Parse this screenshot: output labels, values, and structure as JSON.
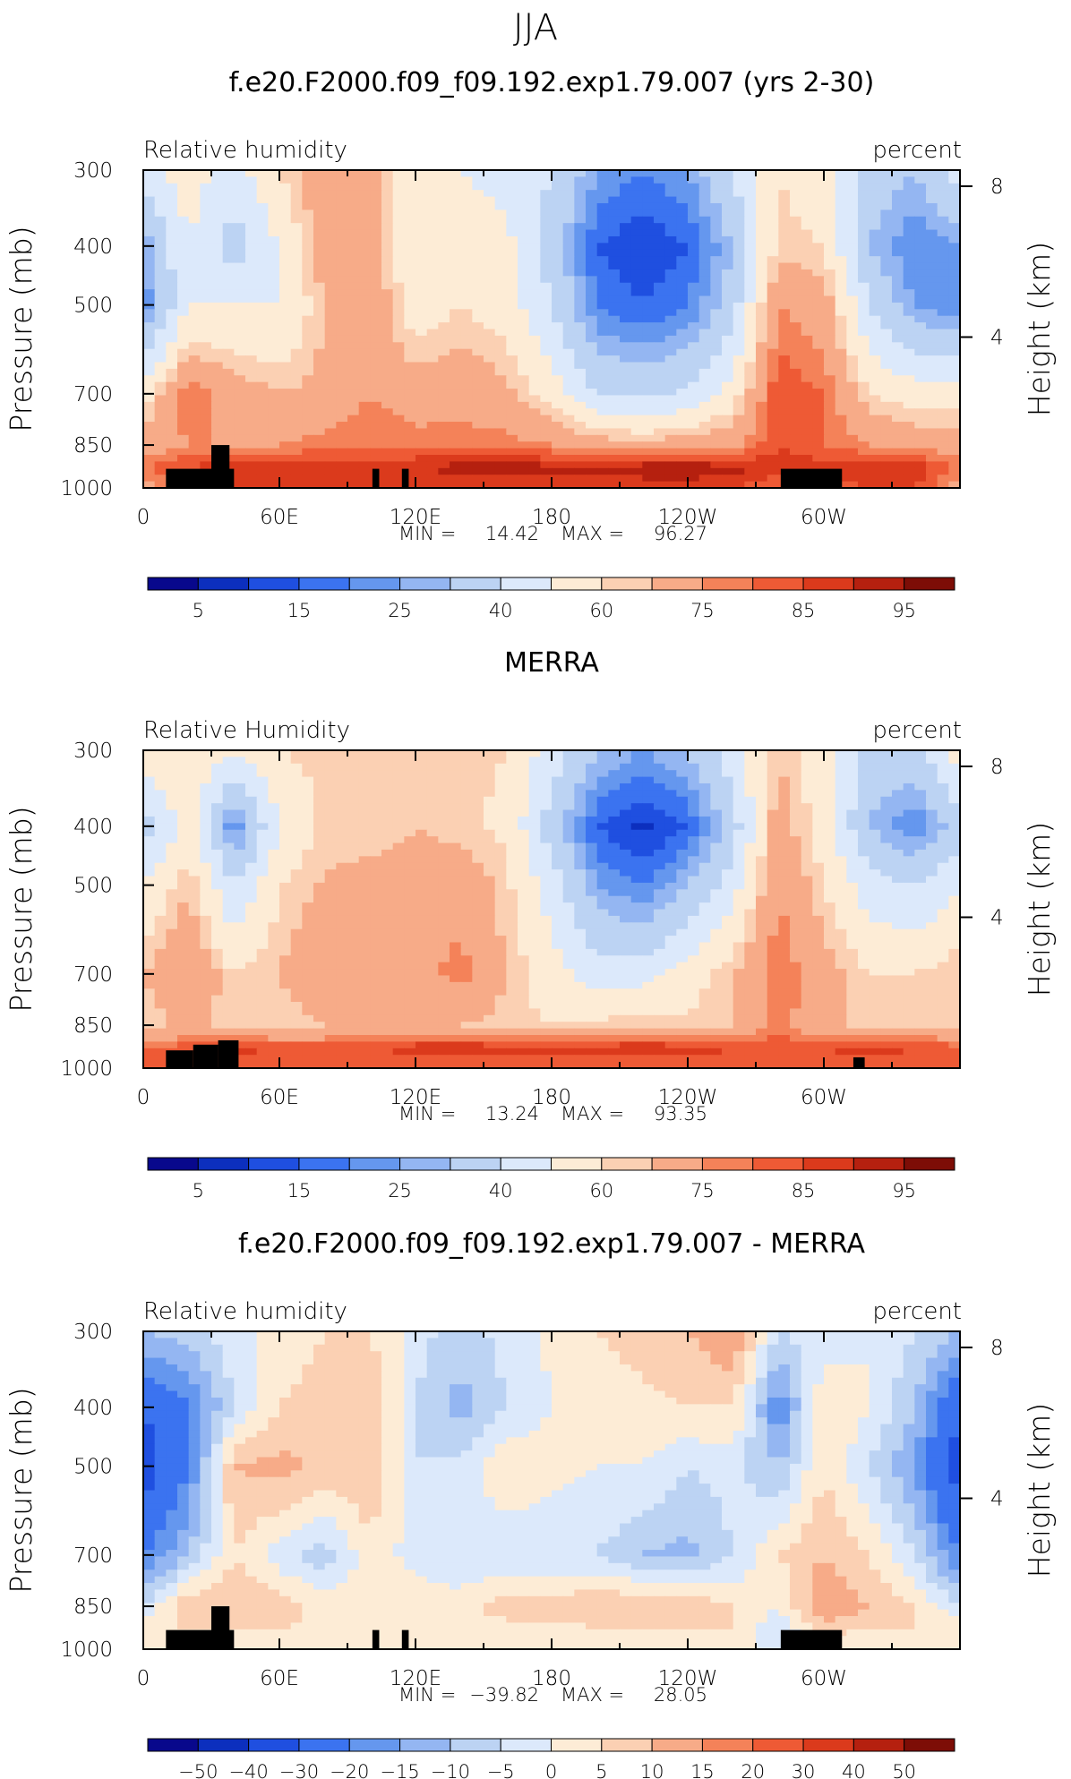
{
  "figure": {
    "season": "JJA"
  },
  "colors": {
    "abs_palette": [
      "#08088c",
      "#0c2fbe",
      "#1f4fe0",
      "#3b73f0",
      "#6597ee",
      "#94b6f2",
      "#bcd3f3",
      "#dce9fb",
      "#fdecd6",
      "#fbd0b3",
      "#f7ab88",
      "#f48259",
      "#ee5a35",
      "#db3a1c",
      "#b5200f",
      "#7d0d06"
    ],
    "diff_palette": [
      "#08088c",
      "#0c2fbe",
      "#1f4fe0",
      "#3b73f0",
      "#6597ee",
      "#94b6f2",
      "#bcd3f3",
      "#dce9fb",
      "#fdecd6",
      "#fbd0b3",
      "#f7ab88",
      "#f48259",
      "#ee5a35",
      "#db3a1c",
      "#b5200f",
      "#7d0d06"
    ],
    "topography": "#000000"
  },
  "chart_data": [
    {
      "type": "heatmap",
      "title": "f.e20.F2000.f09_f09.192.exp1.79.007 (yrs 2-30)",
      "left_string": "Relative humidity",
      "right_string": "percent",
      "ylabel": "Pressure (mb)",
      "ylabel_right": "Height (km)",
      "x_ticks": [
        "0",
        "60E",
        "120E",
        "180",
        "120W",
        "60W"
      ],
      "x_tick_values": [
        0,
        60,
        120,
        180,
        240,
        300
      ],
      "xlim": [
        0,
        360
      ],
      "y_ticks": [
        "300",
        "400",
        "500",
        "700",
        "850",
        "1000"
      ],
      "y_tick_values": [
        300,
        400,
        500,
        700,
        850,
        1000
      ],
      "ylim": [
        300,
        1000
      ],
      "height_ticks": [
        "8",
        "4"
      ],
      "height_tick_values": [
        8,
        4
      ],
      "min_label": "MIN =",
      "min_value": "14.42",
      "max_label": "MAX =",
      "max_value": "96.27",
      "colorbar_levels": [
        5,
        10,
        15,
        20,
        25,
        30,
        40,
        50,
        60,
        65,
        75,
        80,
        85,
        90,
        95
      ],
      "colorbar_labels": [
        "5",
        "15",
        "25",
        "40",
        "60",
        "75",
        "85",
        "95"
      ],
      "field": {
        "lon": [
          0,
          20,
          40,
          60,
          80,
          100,
          120,
          140,
          160,
          180,
          200,
          220,
          240,
          260,
          280,
          300,
          320,
          340,
          360
        ],
        "pressure": [
          300,
          400,
          500,
          700,
          850,
          925,
          1000
        ],
        "values": [
          [
            45,
            55,
            45,
            60,
            72,
            70,
            52,
            50,
            47,
            40,
            25,
            20,
            25,
            40,
            60,
            55,
            35,
            30,
            45
          ],
          [
            25,
            50,
            35,
            50,
            70,
            72,
            50,
            55,
            53,
            35,
            15,
            10,
            15,
            30,
            62,
            60,
            30,
            20,
            25
          ],
          [
            20,
            50,
            50,
            50,
            65,
            72,
            55,
            60,
            55,
            40,
            20,
            15,
            20,
            35,
            75,
            70,
            40,
            25,
            20
          ],
          [
            55,
            80,
            70,
            65,
            68,
            75,
            70,
            72,
            68,
            55,
            40,
            38,
            42,
            55,
            85,
            80,
            60,
            55,
            55
          ],
          [
            70,
            75,
            75,
            75,
            78,
            80,
            78,
            78,
            78,
            75,
            70,
            68,
            70,
            73,
            85,
            80,
            75,
            72,
            70
          ],
          [
            80,
            85,
            90,
            90,
            88,
            88,
            90,
            92,
            92,
            92,
            92,
            93,
            93,
            92,
            88,
            88,
            90,
            90,
            80
          ],
          [
            70,
            80,
            85,
            85,
            85,
            85,
            85,
            85,
            85,
            85,
            87,
            87,
            88,
            85,
            80,
            80,
            85,
            85,
            70
          ]
        ]
      },
      "topography": [
        [
          10,
          40,
          930
        ],
        [
          30,
          38,
          850
        ],
        [
          101,
          104,
          930
        ],
        [
          114,
          117,
          930
        ],
        [
          281,
          308,
          930
        ]
      ]
    },
    {
      "type": "heatmap",
      "title": "MERRA",
      "left_string": "Relative Humidity",
      "right_string": "percent",
      "ylabel": "Pressure (mb)",
      "ylabel_right": "Height (km)",
      "x_ticks": [
        "0",
        "60E",
        "120E",
        "180",
        "120W",
        "60W"
      ],
      "x_tick_values": [
        0,
        60,
        120,
        180,
        240,
        300
      ],
      "xlim": [
        0,
        360
      ],
      "y_ticks": [
        "300",
        "400",
        "500",
        "700",
        "850",
        "1000"
      ],
      "y_tick_values": [
        300,
        400,
        500,
        700,
        850,
        1000
      ],
      "ylim": [
        300,
        1000
      ],
      "height_ticks": [
        "8",
        "4"
      ],
      "height_tick_values": [
        8,
        4
      ],
      "min_label": "MIN =",
      "min_value": "13.24",
      "max_label": "MAX =",
      "max_value": "93.35",
      "colorbar_levels": [
        5,
        10,
        15,
        20,
        25,
        30,
        40,
        50,
        60,
        65,
        75,
        80,
        85,
        90,
        95
      ],
      "colorbar_labels": [
        "5",
        "15",
        "25",
        "40",
        "60",
        "75",
        "85",
        "95"
      ],
      "field": {
        "lon": [
          0,
          20,
          40,
          60,
          80,
          100,
          120,
          140,
          160,
          180,
          200,
          220,
          240,
          260,
          280,
          300,
          320,
          340,
          360
        ],
        "pressure": [
          300,
          400,
          500,
          700,
          850,
          925,
          1000
        ],
        "values": [
          [
            55,
            60,
            50,
            60,
            62,
            60,
            62,
            62,
            60,
            45,
            30,
            25,
            30,
            45,
            65,
            55,
            35,
            35,
            55
          ],
          [
            35,
            55,
            20,
            50,
            62,
            62,
            65,
            62,
            58,
            35,
            15,
            8,
            15,
            35,
            70,
            55,
            30,
            20,
            35
          ],
          [
            50,
            65,
            40,
            60,
            66,
            68,
            68,
            72,
            62,
            45,
            25,
            20,
            30,
            45,
            75,
            60,
            45,
            40,
            50
          ],
          [
            65,
            75,
            60,
            65,
            75,
            70,
            72,
            78,
            65,
            55,
            45,
            45,
            55,
            65,
            80,
            70,
            60,
            60,
            65
          ],
          [
            60,
            68,
            62,
            60,
            65,
            65,
            65,
            65,
            62,
            60,
            62,
            65,
            62,
            65,
            80,
            65,
            65,
            65,
            60
          ],
          [
            82,
            82,
            88,
            85,
            82,
            85,
            88,
            88,
            88,
            88,
            88,
            88,
            88,
            85,
            82,
            85,
            88,
            85,
            82
          ],
          [
            80,
            80,
            80,
            80,
            80,
            80,
            80,
            80,
            80,
            80,
            82,
            82,
            82,
            80,
            80,
            80,
            82,
            80,
            80
          ]
        ]
      },
      "topography": [
        [
          10,
          22,
          935
        ],
        [
          22,
          33,
          915
        ],
        [
          33,
          42,
          900
        ],
        [
          313,
          318,
          960
        ]
      ]
    },
    {
      "type": "heatmap",
      "title": "f.e20.F2000.f09_f09.192.exp1.79.007 - MERRA",
      "left_string": "Relative humidity",
      "right_string": "percent",
      "ylabel": "Pressure (mb)",
      "ylabel_right": "Height (km)",
      "x_ticks": [
        "0",
        "60E",
        "120E",
        "180",
        "120W",
        "60W"
      ],
      "x_tick_values": [
        0,
        60,
        120,
        180,
        240,
        300
      ],
      "xlim": [
        0,
        360
      ],
      "y_ticks": [
        "300",
        "400",
        "500",
        "700",
        "850",
        "1000"
      ],
      "y_tick_values": [
        300,
        400,
        500,
        700,
        850,
        1000
      ],
      "ylim": [
        300,
        1000
      ],
      "height_ticks": [
        "8",
        "4"
      ],
      "height_tick_values": [
        8,
        4
      ],
      "min_label": "MIN =",
      "min_value": "−39.82",
      "max_label": "MAX =",
      "max_value": "28.05",
      "colorbar_levels": [
        -50,
        -40,
        -30,
        -20,
        -15,
        -10,
        -5,
        0,
        5,
        10,
        15,
        20,
        30,
        40,
        50
      ],
      "colorbar_labels": [
        "−50",
        "−40",
        "−30",
        "−20",
        "−15",
        "−10",
        "−5",
        "0",
        "5",
        "10",
        "15",
        "20",
        "30",
        "40",
        "50"
      ],
      "field": {
        "lon": [
          0,
          20,
          40,
          60,
          80,
          100,
          120,
          140,
          160,
          180,
          200,
          220,
          240,
          260,
          280,
          300,
          320,
          340,
          360
        ],
        "pressure": [
          300,
          400,
          500,
          700,
          850,
          925,
          1000
        ],
        "values": [
          [
            -10,
            -8,
            -2,
            2,
            5,
            5,
            -3,
            -8,
            -3,
            1,
            5,
            8,
            10,
            15,
            -5,
            -3,
            0,
            -5,
            -10
          ],
          [
            -30,
            -20,
            -5,
            5,
            8,
            10,
            -5,
            -12,
            -5,
            0,
            0,
            3,
            5,
            5,
            -20,
            5,
            0,
            -10,
            -30
          ],
          [
            -35,
            -20,
            10,
            12,
            8,
            10,
            -5,
            -3,
            5,
            2,
            0,
            0,
            -5,
            -3,
            -10,
            5,
            -5,
            -15,
            -35
          ],
          [
            -20,
            -10,
            5,
            -3,
            -8,
            3,
            -2,
            -5,
            -5,
            -5,
            -5,
            -10,
            -12,
            -5,
            5,
            10,
            5,
            -5,
            -20
          ],
          [
            -5,
            10,
            10,
            8,
            3,
            5,
            3,
            3,
            8,
            8,
            10,
            10,
            10,
            5,
            0,
            15,
            10,
            5,
            -5
          ],
          [
            3,
            5,
            5,
            5,
            3,
            3,
            2,
            3,
            3,
            3,
            5,
            5,
            5,
            5,
            -5,
            8,
            5,
            5,
            3
          ],
          [
            0,
            0,
            0,
            0,
            0,
            0,
            0,
            0,
            0,
            0,
            0,
            0,
            0,
            0,
            0,
            0,
            0,
            0,
            0
          ]
        ]
      },
      "topography": [
        [
          10,
          40,
          930
        ],
        [
          30,
          38,
          850
        ],
        [
          101,
          104,
          930
        ],
        [
          114,
          117,
          930
        ],
        [
          281,
          308,
          930
        ]
      ]
    }
  ]
}
